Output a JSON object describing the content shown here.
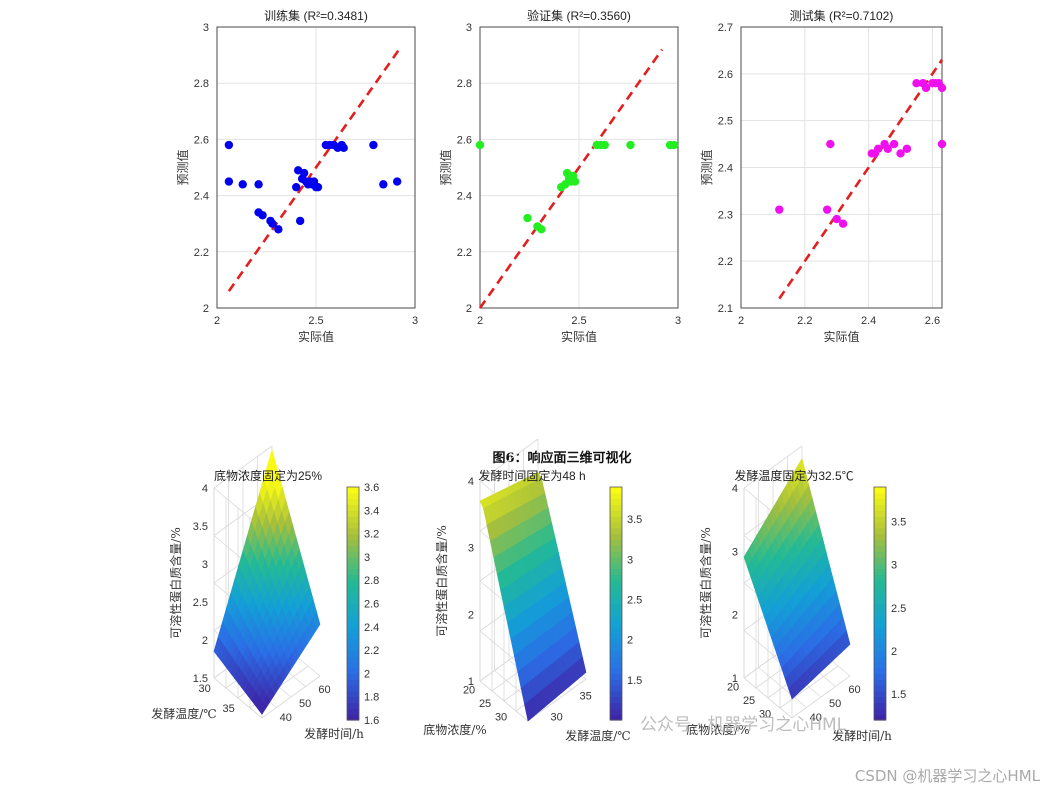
{
  "colors": {
    "train_marker": "#0000ee",
    "val_marker": "#22ee22",
    "test_marker": "#ee11ee",
    "fit_line": "#e21f1f",
    "grid": "#e3e3e3",
    "axis": "#4a4a4a"
  },
  "chart_data": [
    {
      "type": "scatter",
      "title": "训练集 (R²=0.3481)",
      "xlabel": "实际值",
      "ylabel": "预测值",
      "xlim": [
        2,
        3
      ],
      "ylim": [
        2,
        3
      ],
      "xticks": [
        "2",
        "2.5",
        "3"
      ],
      "yticks": [
        "2",
        "2.2",
        "2.4",
        "2.6",
        "2.8",
        "3"
      ],
      "grid": true,
      "fit_line": [
        [
          2.06,
          2.06
        ],
        [
          2.92,
          2.92
        ]
      ],
      "points": [
        [
          2.06,
          2.58
        ],
        [
          2.06,
          2.45
        ],
        [
          2.13,
          2.44
        ],
        [
          2.21,
          2.44
        ],
        [
          2.21,
          2.34
        ],
        [
          2.23,
          2.33
        ],
        [
          2.27,
          2.31
        ],
        [
          2.28,
          2.3
        ],
        [
          2.31,
          2.28
        ],
        [
          2.4,
          2.43
        ],
        [
          2.41,
          2.49
        ],
        [
          2.42,
          2.31
        ],
        [
          2.43,
          2.46
        ],
        [
          2.44,
          2.48
        ],
        [
          2.45,
          2.45
        ],
        [
          2.46,
          2.44
        ],
        [
          2.47,
          2.45
        ],
        [
          2.48,
          2.44
        ],
        [
          2.49,
          2.45
        ],
        [
          2.5,
          2.43
        ],
        [
          2.51,
          2.43
        ],
        [
          2.55,
          2.58
        ],
        [
          2.57,
          2.58
        ],
        [
          2.59,
          2.58
        ],
        [
          2.61,
          2.57
        ],
        [
          2.63,
          2.58
        ],
        [
          2.64,
          2.57
        ],
        [
          2.79,
          2.58
        ],
        [
          2.84,
          2.44
        ],
        [
          2.91,
          2.45
        ]
      ]
    },
    {
      "type": "scatter",
      "title": "验证集 (R²=0.3560)",
      "xlabel": "实际值",
      "ylabel": "预测值",
      "xlim": [
        2,
        3
      ],
      "ylim": [
        2,
        3
      ],
      "xticks": [
        "2",
        "2.5",
        "3"
      ],
      "yticks": [
        "2",
        "2.2",
        "2.4",
        "2.6",
        "2.8",
        "3"
      ],
      "grid": true,
      "fit_line": [
        [
          2.0,
          2.0
        ],
        [
          2.92,
          2.92
        ]
      ],
      "points": [
        [
          2.0,
          2.58
        ],
        [
          2.24,
          2.32
        ],
        [
          2.29,
          2.29
        ],
        [
          2.31,
          2.28
        ],
        [
          2.41,
          2.43
        ],
        [
          2.43,
          2.44
        ],
        [
          2.44,
          2.48
        ],
        [
          2.45,
          2.46
        ],
        [
          2.46,
          2.45
        ],
        [
          2.47,
          2.47
        ],
        [
          2.48,
          2.45
        ],
        [
          2.59,
          2.58
        ],
        [
          2.61,
          2.58
        ],
        [
          2.63,
          2.58
        ],
        [
          2.76,
          2.58
        ],
        [
          2.96,
          2.58
        ],
        [
          2.98,
          2.58
        ]
      ]
    },
    {
      "type": "scatter",
      "title": "测试集 (R²=0.7102)",
      "xlabel": "实际值",
      "ylabel": "预测值",
      "xlim": [
        2,
        2.63
      ],
      "ylim": [
        2.1,
        2.7
      ],
      "xticks": [
        "2",
        "2.2",
        "2.4",
        "2.6"
      ],
      "yticks": [
        "2.1",
        "2.2",
        "2.3",
        "2.4",
        "2.5",
        "2.6",
        "2.7"
      ],
      "grid": true,
      "fit_line": [
        [
          2.12,
          2.12
        ],
        [
          2.63,
          2.63
        ]
      ],
      "points": [
        [
          2.12,
          2.31
        ],
        [
          2.27,
          2.31
        ],
        [
          2.28,
          2.45
        ],
        [
          2.3,
          2.29
        ],
        [
          2.32,
          2.28
        ],
        [
          2.41,
          2.43
        ],
        [
          2.42,
          2.43
        ],
        [
          2.43,
          2.44
        ],
        [
          2.45,
          2.45
        ],
        [
          2.46,
          2.44
        ],
        [
          2.48,
          2.45
        ],
        [
          2.5,
          2.43
        ],
        [
          2.52,
          2.44
        ],
        [
          2.55,
          2.58
        ],
        [
          2.57,
          2.58
        ],
        [
          2.58,
          2.57
        ],
        [
          2.6,
          2.58
        ],
        [
          2.61,
          2.58
        ],
        [
          2.62,
          2.58
        ],
        [
          2.63,
          2.45
        ],
        [
          2.63,
          2.57
        ]
      ]
    },
    {
      "type": "surface",
      "title": "底物浓度固定为25%",
      "xlabel": "发酵时间/h",
      "ylabel": "发酵温度/℃",
      "zlabel": "可溶性蛋白质含量/%",
      "xticks": [
        "40",
        "50",
        "60"
      ],
      "yticks": [
        "30",
        "35"
      ],
      "zticks": [
        "1.5",
        "2",
        "2.5",
        "3",
        "3.5",
        "4"
      ],
      "colorbar_ticks": [
        "1.6",
        "1.8",
        "2",
        "2.2",
        "2.4",
        "2.6",
        "2.8",
        "3",
        "3.2",
        "3.4",
        "3.6"
      ],
      "z_range": [
        1.6,
        3.6
      ]
    },
    {
      "type": "surface",
      "title": "发酵时间固定为48 h",
      "xlabel": "发酵温度/℃",
      "ylabel": "底物浓度/%",
      "zlabel": "可溶性蛋白质含量/%",
      "xticks": [
        "30",
        "35"
      ],
      "yticks": [
        "20",
        "25",
        "30"
      ],
      "zticks": [
        "1",
        "2",
        "3",
        "4"
      ],
      "colorbar_ticks": [
        "1.5",
        "2",
        "2.5",
        "3",
        "3.5"
      ],
      "z_range": [
        1,
        3.9
      ]
    },
    {
      "type": "surface",
      "title": "发酵温度固定为32.5℃",
      "xlabel": "发酵时间/h",
      "ylabel": "底物浓度/%",
      "zlabel": "可溶性蛋白质含量/%",
      "xticks": [
        "40",
        "50",
        "60"
      ],
      "yticks": [
        "20",
        "25",
        "30"
      ],
      "zticks": [
        "1",
        "2",
        "3",
        "4"
      ],
      "colorbar_ticks": [
        "1.5",
        "2",
        "2.5",
        "3",
        "3.5"
      ],
      "z_range": [
        1.2,
        3.9
      ]
    }
  ],
  "figure_caption": "图6：响应面三维可视化",
  "watermark": {
    "wechat": "公众号 · 机器学习之心HML",
    "csdn": "CSDN @机器学习之心HML"
  }
}
